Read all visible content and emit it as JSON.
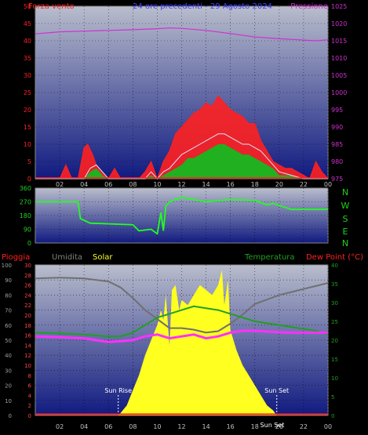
{
  "chart_data": [
    {
      "type": "line",
      "id": "top",
      "title": "24 ore precedenti - 29 Agosto 2024",
      "left_label": "Forza vento",
      "right_label": "Pressione",
      "x_ticks": [
        "02",
        "04",
        "06",
        "08",
        "10",
        "12",
        "14",
        "16",
        "18",
        "20",
        "22",
        "00"
      ],
      "x_range": [
        0,
        24
      ],
      "y_left_range": [
        0,
        50
      ],
      "y_left_ticks": [
        "0",
        "5",
        "10",
        "15",
        "20",
        "25",
        "30",
        "35",
        "40",
        "45",
        "50"
      ],
      "y_right_range": [
        975,
        1025
      ],
      "y_right_ticks": [
        "975",
        "980",
        "985",
        "990",
        "995",
        "1000",
        "1005",
        "1010",
        "1015",
        "1020",
        "1025"
      ],
      "colors": {
        "gust": "#ff2020",
        "speed": "#20b020",
        "avg": "#e0e0ff",
        "pressure": "#d030d0",
        "bg_top": "#b9bdcc",
        "bg_bottom": "#101a80"
      },
      "series": [
        {
          "key": "pressure",
          "x": [
            0,
            2,
            4,
            6,
            8,
            10,
            11,
            12,
            14,
            16,
            18,
            20,
            22,
            23,
            24
          ],
          "values": [
            1017.0,
            1017.6,
            1017.8,
            1018.0,
            1018.2,
            1018.5,
            1018.7,
            1018.6,
            1018.0,
            1017.1,
            1016.1,
            1015.6,
            1015.2,
            1015.0,
            1015.3
          ]
        },
        {
          "key": "gust",
          "x": [
            0,
            1,
            1.5,
            2,
            2.5,
            3,
            3.5,
            4,
            4.3,
            4.7,
            5,
            5.5,
            6,
            6.5,
            7,
            7.5,
            8,
            8.5,
            9,
            9.5,
            10,
            10.5,
            11,
            11.5,
            12,
            12.5,
            13,
            13.5,
            14,
            14.5,
            15,
            15.5,
            16,
            16.5,
            17,
            17.5,
            18,
            18.5,
            19,
            19.5,
            20,
            20.5,
            21,
            21.5,
            22,
            22.5,
            23,
            23.5,
            24
          ],
          "values": [
            0,
            0,
            0,
            0,
            4,
            0,
            0,
            9,
            10,
            7,
            4,
            2,
            0,
            3,
            0,
            0,
            0,
            0,
            2,
            5,
            0,
            5,
            8,
            13,
            15,
            17,
            19,
            20,
            22,
            21,
            24,
            22,
            20,
            19,
            18,
            16,
            16,
            11,
            8,
            5,
            4,
            3,
            3,
            2,
            1,
            0,
            5,
            2,
            0
          ]
        },
        {
          "key": "avg",
          "x": [
            0,
            4,
            4.5,
            5,
            5.5,
            6,
            9,
            9.5,
            10,
            10.5,
            11,
            11.5,
            12,
            12.5,
            13,
            13.5,
            14,
            14.5,
            15,
            15.5,
            16,
            16.5,
            17,
            17.5,
            18,
            18.5,
            19,
            19.5,
            20,
            21,
            22,
            23,
            24
          ],
          "values": [
            0,
            0,
            3,
            4,
            2,
            0,
            0,
            2,
            0,
            2,
            3,
            5,
            7,
            8,
            9,
            10,
            11,
            12,
            13,
            13,
            12,
            11,
            10,
            10,
            9,
            8,
            6,
            4,
            2,
            1,
            0,
            0,
            0
          ]
        },
        {
          "key": "speed",
          "x": [
            0,
            4,
            4.5,
            5,
            5.5,
            6,
            9,
            9.5,
            10,
            10.5,
            11,
            11.5,
            12,
            12.5,
            13,
            13.5,
            14,
            14.5,
            15,
            15.5,
            16,
            16.5,
            17,
            17.5,
            18,
            18.5,
            19,
            19.5,
            20,
            21,
            22,
            23,
            24
          ],
          "values": [
            0,
            0,
            2,
            3,
            1,
            0,
            0,
            1,
            0,
            1,
            2,
            3,
            4,
            6,
            6,
            7,
            8,
            9,
            10,
            10,
            9,
            8,
            7,
            7,
            6,
            5,
            4,
            3,
            1,
            1,
            0,
            0,
            0
          ]
        }
      ]
    },
    {
      "type": "line",
      "id": "dir",
      "y_range": [
        0,
        360
      ],
      "y_ticks": [
        "0",
        "90",
        "180",
        "270",
        "360"
      ],
      "compass": [
        "N",
        "W",
        "S",
        "E",
        "N"
      ],
      "colors": {
        "dir": "#20ff20",
        "bg_top": "#b9bdcc",
        "bg_bottom": "#101a80"
      },
      "series": [
        {
          "key": "dir",
          "x": [
            0,
            3.5,
            3.7,
            4.5,
            8,
            8.5,
            9.5,
            10,
            10.3,
            10.5,
            10.7,
            11,
            12,
            14,
            16,
            18,
            18.5,
            19,
            19.5,
            21,
            24
          ],
          "values": [
            270,
            270,
            160,
            130,
            120,
            80,
            90,
            60,
            200,
            80,
            240,
            270,
            300,
            270,
            285,
            280,
            265,
            250,
            260,
            220,
            220
          ]
        }
      ]
    },
    {
      "type": "area",
      "id": "bottom",
      "left_label": "Pioggia",
      "labels": [
        "Umidita",
        "Solar",
        "Temperatura",
        "Dew Point (°C)"
      ],
      "y_outer_range": [
        0,
        100
      ],
      "y_outer_ticks": [
        "0",
        "10",
        "20",
        "30",
        "40",
        "50",
        "60",
        "70",
        "80",
        "90",
        "100"
      ],
      "y_inner_range": [
        0,
        30
      ],
      "y_inner_ticks": [
        "0",
        "2",
        "4",
        "6",
        "8",
        "10",
        "12",
        "14",
        "16",
        "18",
        "20",
        "22",
        "24",
        "26",
        "28",
        "30"
      ],
      "y_right_range": [
        0,
        40
      ],
      "y_right_ticks": [
        "0",
        "5",
        "10",
        "15",
        "20",
        "25",
        "30",
        "35",
        "40"
      ],
      "sun_rise": {
        "label": "Sun Rise",
        "x": 6.8
      },
      "sun_set": {
        "label": "Sun Set",
        "x": 19.8
      },
      "overlay_label": "Sun Set",
      "colors": {
        "rain": "#ff2020",
        "humidity": "#707070",
        "solar": "#ffff20",
        "temp": "#20a020",
        "dew": "#ff30ff",
        "bg_top": "#b9bdcc",
        "bg_bottom": "#101a80"
      },
      "series": [
        {
          "key": "humidity",
          "x": [
            0,
            2,
            4,
            6,
            7,
            8,
            9,
            10,
            11,
            12,
            13,
            14,
            15,
            16,
            17,
            18,
            19,
            20,
            21,
            22,
            23,
            24
          ],
          "values": [
            91,
            91.5,
            91,
            89,
            85,
            78,
            70,
            64,
            58,
            58,
            57,
            55,
            56,
            61,
            67,
            74,
            77,
            80,
            82,
            84,
            86,
            88
          ]
        },
        {
          "key": "temp",
          "x": [
            0,
            2,
            4,
            6,
            7,
            8,
            9,
            10,
            11,
            12,
            13,
            14,
            15,
            16,
            17,
            18,
            19,
            20,
            21,
            22,
            23,
            24
          ],
          "values": [
            22,
            21.8,
            21.5,
            21,
            21,
            22,
            24,
            26,
            27,
            28,
            29,
            28.5,
            28,
            27,
            26,
            25,
            24.5,
            24,
            23.5,
            23,
            22.5,
            21.5
          ]
        },
        {
          "key": "dew",
          "x": [
            0,
            2,
            4,
            6,
            8,
            9,
            10,
            11,
            12,
            13,
            14,
            15,
            16,
            17,
            18,
            19,
            20,
            21,
            22,
            23,
            24
          ],
          "values": [
            21,
            20.8,
            20.5,
            19.5,
            20,
            21,
            21.5,
            20.5,
            21,
            21.5,
            20.5,
            21,
            22,
            22.5,
            22.5,
            22.3,
            22.1,
            22,
            22,
            22,
            22
          ]
        },
        {
          "key": "solar",
          "x": [
            0,
            6.8,
            7,
            7.5,
            8,
            8.5,
            9,
            9.5,
            10,
            10.3,
            10.5,
            10.7,
            11,
            11.2,
            11.5,
            11.8,
            12,
            12.5,
            13,
            13.5,
            14,
            14.5,
            15,
            15.3,
            15.5,
            15.8,
            16,
            16.5,
            17,
            17.5,
            18,
            18.5,
            19,
            19.5,
            19.8,
            24
          ],
          "values": [
            0,
            0,
            0.5,
            2,
            5,
            8,
            12,
            15,
            18,
            21,
            19,
            24,
            14,
            25,
            26,
            21,
            23,
            22,
            24,
            26,
            25,
            24,
            26,
            29,
            22,
            27,
            17,
            13,
            10,
            8,
            6,
            4,
            2,
            1,
            0,
            0
          ]
        },
        {
          "key": "rain",
          "x": [
            0,
            24
          ],
          "values": [
            0,
            0
          ]
        }
      ]
    }
  ]
}
